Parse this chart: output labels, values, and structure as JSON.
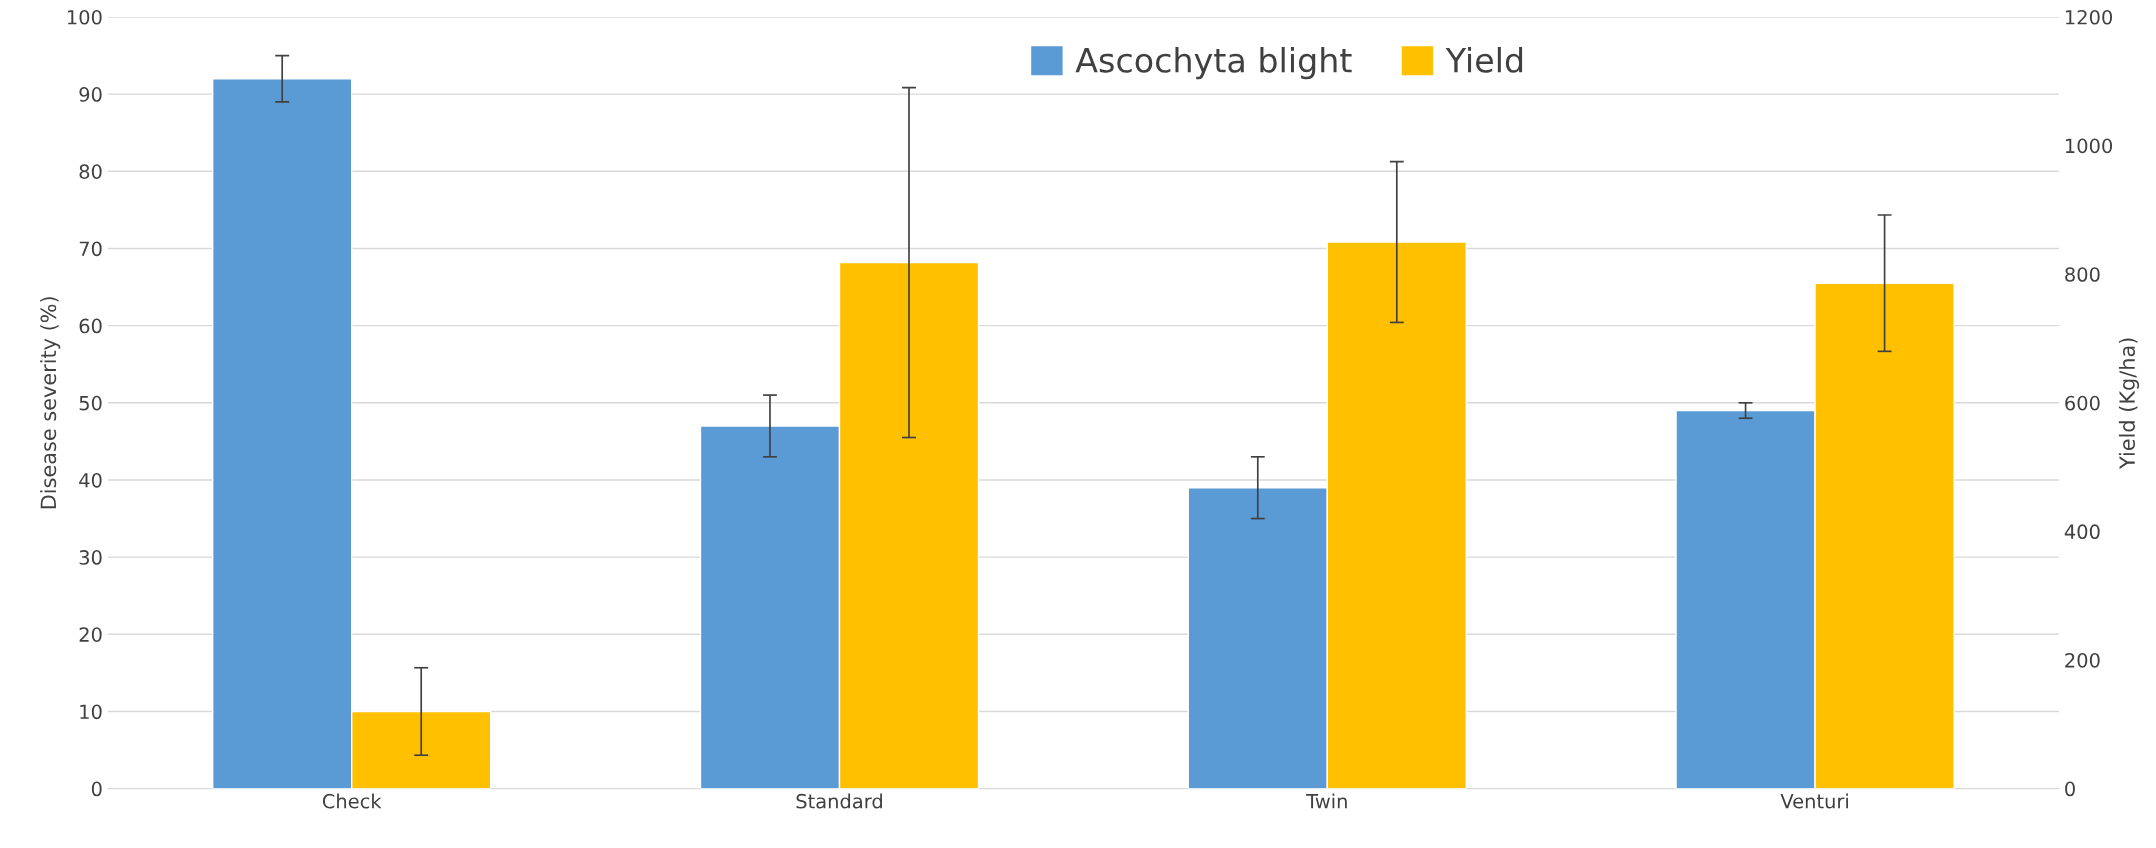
{
  "chart_data": {
    "type": "bar",
    "categories": [
      "Check",
      "Standard",
      "Twin",
      "Venturi"
    ],
    "ylabel": "Disease severity (%)",
    "y2label": "Yield (Kg/ha)",
    "ylim": [
      0,
      100
    ],
    "yticks": [
      0,
      10,
      20,
      30,
      40,
      50,
      60,
      70,
      80,
      90,
      100
    ],
    "y2lim": [
      0,
      1200
    ],
    "y2ticks": [
      0,
      200,
      400,
      600,
      800,
      1000,
      1200
    ],
    "series": [
      {
        "name": "Ascochyta blight",
        "color": "#5b9bd5",
        "values": [
          92,
          47,
          39,
          49
        ],
        "errors": [
          3,
          4,
          4,
          1
        ]
      },
      {
        "name": "Yield",
        "color": "#ffc000",
        "axis": "y2",
        "values": [
          120,
          818,
          850,
          786
        ],
        "errors": [
          68,
          272,
          125,
          106
        ]
      }
    ],
    "grid": "y",
    "legend": "top"
  }
}
